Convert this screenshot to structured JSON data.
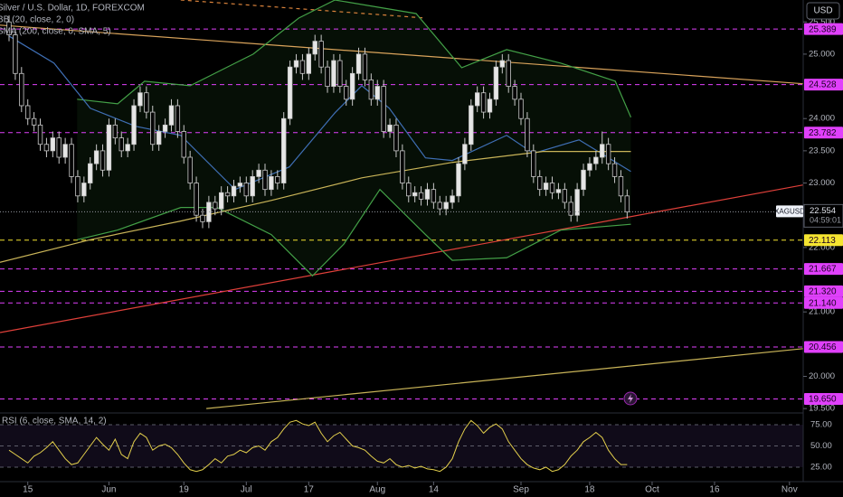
{
  "chart_data": {
    "type": "candlestick",
    "title": "Silver / U.S. Dollar, 1D, FOREXCOM",
    "indicators": [
      "BB (20, close, 2, 0)",
      "SMA (200, close, 0, SMA, 5)"
    ],
    "currency": "USD",
    "up_color": "#e6e6e6",
    "down_color": "#050505",
    "candles": [
      [
        25.5,
        25.6,
        25.2,
        25.3
      ],
      [
        25.3,
        25.4,
        24.6,
        24.7
      ],
      [
        24.7,
        24.8,
        24.1,
        24.2
      ],
      [
        24.2,
        24.3,
        23.9,
        24.0
      ],
      [
        24.0,
        24.1,
        23.8,
        23.9
      ],
      [
        23.9,
        24.0,
        23.5,
        23.6
      ],
      [
        23.6,
        23.7,
        23.4,
        23.5
      ],
      [
        23.5,
        23.8,
        23.4,
        23.7
      ],
      [
        23.7,
        23.8,
        23.3,
        23.4
      ],
      [
        23.4,
        23.7,
        23.3,
        23.6
      ],
      [
        23.6,
        23.7,
        23.0,
        23.1
      ],
      [
        23.1,
        23.2,
        22.7,
        22.8
      ],
      [
        22.8,
        23.1,
        22.7,
        23.0
      ],
      [
        23.0,
        23.4,
        22.9,
        23.3
      ],
      [
        23.3,
        23.6,
        23.2,
        23.5
      ],
      [
        23.5,
        23.6,
        23.1,
        23.2
      ],
      [
        23.2,
        24.0,
        23.1,
        23.9
      ],
      [
        23.9,
        24.0,
        23.6,
        23.7
      ],
      [
        23.7,
        23.8,
        23.4,
        23.5
      ],
      [
        23.5,
        23.7,
        23.4,
        23.6
      ],
      [
        23.6,
        24.3,
        23.5,
        24.2
      ],
      [
        24.2,
        24.5,
        24.1,
        24.4
      ],
      [
        24.4,
        24.5,
        24.0,
        24.1
      ],
      [
        24.1,
        24.2,
        23.5,
        23.6
      ],
      [
        23.6,
        23.9,
        23.5,
        23.8
      ],
      [
        23.8,
        24.0,
        23.7,
        23.9
      ],
      [
        23.9,
        24.3,
        23.8,
        24.2
      ],
      [
        24.2,
        24.3,
        23.7,
        23.8
      ],
      [
        23.8,
        23.9,
        23.3,
        23.4
      ],
      [
        23.4,
        23.5,
        22.9,
        23.0
      ],
      [
        23.0,
        23.1,
        22.4,
        22.5
      ],
      [
        22.5,
        22.6,
        22.3,
        22.4
      ],
      [
        22.4,
        22.8,
        22.3,
        22.7
      ],
      [
        22.7,
        22.8,
        22.5,
        22.6
      ],
      [
        22.6,
        22.95,
        22.5,
        22.85
      ],
      [
        22.85,
        22.95,
        22.7,
        22.8
      ],
      [
        22.8,
        23.05,
        22.7,
        22.95
      ],
      [
        22.95,
        23.1,
        22.85,
        23.0
      ],
      [
        23.0,
        23.1,
        22.7,
        22.8
      ],
      [
        22.8,
        23.2,
        22.7,
        23.1
      ],
      [
        23.1,
        23.3,
        23.0,
        23.2
      ],
      [
        23.2,
        23.3,
        22.8,
        22.9
      ],
      [
        22.9,
        23.2,
        22.8,
        23.1
      ],
      [
        23.1,
        23.2,
        22.9,
        23.0
      ],
      [
        23.0,
        24.1,
        22.9,
        24.0
      ],
      [
        24.0,
        24.9,
        23.9,
        24.8
      ],
      [
        24.8,
        25.0,
        24.7,
        24.9
      ],
      [
        24.9,
        25.0,
        24.6,
        24.7
      ],
      [
        24.7,
        25.1,
        24.6,
        25.0
      ],
      [
        25.0,
        25.3,
        24.9,
        25.2
      ],
      [
        25.2,
        25.3,
        24.7,
        24.8
      ],
      [
        24.8,
        24.9,
        24.4,
        24.5
      ],
      [
        24.5,
        25.0,
        24.4,
        24.9
      ],
      [
        24.9,
        25.0,
        24.4,
        24.5
      ],
      [
        24.5,
        24.6,
        24.2,
        24.3
      ],
      [
        24.3,
        24.8,
        24.2,
        24.7
      ],
      [
        24.7,
        25.1,
        24.6,
        25.0
      ],
      [
        25.0,
        25.1,
        24.5,
        24.6
      ],
      [
        24.6,
        24.7,
        24.2,
        24.3
      ],
      [
        24.3,
        24.6,
        24.2,
        24.5
      ],
      [
        24.5,
        24.6,
        23.7,
        23.8
      ],
      [
        23.8,
        24.0,
        23.7,
        23.9
      ],
      [
        23.9,
        24.0,
        23.4,
        23.5
      ],
      [
        23.5,
        23.6,
        22.9,
        23.0
      ],
      [
        23.0,
        23.1,
        22.7,
        22.8
      ],
      [
        22.8,
        22.95,
        22.7,
        22.85
      ],
      [
        22.85,
        22.95,
        22.65,
        22.75
      ],
      [
        22.75,
        23.0,
        22.65,
        22.9
      ],
      [
        22.9,
        23.0,
        22.6,
        22.7
      ],
      [
        22.7,
        22.8,
        22.5,
        22.6
      ],
      [
        22.6,
        22.8,
        22.5,
        22.7
      ],
      [
        22.7,
        22.9,
        22.6,
        22.8
      ],
      [
        22.8,
        23.4,
        22.7,
        23.3
      ],
      [
        23.3,
        23.7,
        23.2,
        23.6
      ],
      [
        23.6,
        24.3,
        23.5,
        24.2
      ],
      [
        24.2,
        24.5,
        24.1,
        24.4
      ],
      [
        24.4,
        24.5,
        24.0,
        24.1
      ],
      [
        24.1,
        24.4,
        24.0,
        24.3
      ],
      [
        24.3,
        24.9,
        24.2,
        24.8
      ],
      [
        24.8,
        25.0,
        24.7,
        24.9
      ],
      [
        24.9,
        25.0,
        24.4,
        24.5
      ],
      [
        24.5,
        24.6,
        24.2,
        24.3
      ],
      [
        24.3,
        24.4,
        23.9,
        24.0
      ],
      [
        24.0,
        24.1,
        23.4,
        23.5
      ],
      [
        23.5,
        23.6,
        23.0,
        23.1
      ],
      [
        23.1,
        23.2,
        22.8,
        22.9
      ],
      [
        22.9,
        23.1,
        22.8,
        23.0
      ],
      [
        23.0,
        23.1,
        22.75,
        22.85
      ],
      [
        22.85,
        23.0,
        22.75,
        22.9
      ],
      [
        22.9,
        23.0,
        22.6,
        22.7
      ],
      [
        22.7,
        22.8,
        22.4,
        22.5
      ],
      [
        22.5,
        23.0,
        22.4,
        22.9
      ],
      [
        22.9,
        23.3,
        22.8,
        23.2
      ],
      [
        23.2,
        23.4,
        23.1,
        23.3
      ],
      [
        23.3,
        23.5,
        23.2,
        23.4
      ],
      [
        23.4,
        23.8,
        23.3,
        23.6
      ],
      [
        23.6,
        23.7,
        23.2,
        23.3
      ],
      [
        23.3,
        23.4,
        23.0,
        23.1
      ],
      [
        23.1,
        23.2,
        22.7,
        22.8
      ],
      [
        22.8,
        22.9,
        22.45,
        22.554
      ]
    ],
    "xlim": [
      -1.45,
      127.2
    ],
    "xticks": [
      {
        "value": 3,
        "label": "15"
      },
      {
        "value": 16,
        "label": "Jun"
      },
      {
        "value": 28,
        "label": "19"
      },
      {
        "value": 38,
        "label": "Jul"
      },
      {
        "value": 48,
        "label": "17"
      },
      {
        "value": 59,
        "label": "Aug"
      },
      {
        "value": 68,
        "label": "14"
      },
      {
        "value": 82,
        "label": "Sep"
      },
      {
        "value": 93,
        "label": "18"
      },
      {
        "value": 103,
        "label": "Oct"
      },
      {
        "value": 113,
        "label": "16"
      },
      {
        "value": 125,
        "label": "Nov"
      }
    ],
    "ylim": [
      19.46,
      25.84
    ],
    "yticks": [
      {
        "value": 25.5,
        "label": "25.500"
      },
      {
        "value": 25,
        "label": "25.000"
      },
      {
        "value": 24,
        "label": "24.000"
      },
      {
        "value": 23.5,
        "label": "23.500"
      },
      {
        "value": 23,
        "label": "23.000"
      },
      {
        "value": 22,
        "label": "22.000"
      },
      {
        "value": 21,
        "label": "21.000"
      },
      {
        "value": 20,
        "label": "20.000"
      },
      {
        "value": 19.5,
        "label": "19.500"
      }
    ],
    "band_fill": "rgba(46,125,50,0.12)",
    "lines": [
      {
        "color": "#43a047",
        "x": [
          10.9,
          17.4,
          21.7,
          29,
          39.1,
          46.4,
          52.2,
          65.2,
          72.5,
          79.7,
          88.4,
          97.1,
          99.6
        ],
        "values": [
          24.3,
          24.23,
          24.58,
          24.51,
          25.0,
          25.56,
          25.84,
          25.63,
          24.79,
          25.07,
          24.86,
          24.58,
          24.02
        ]
      },
      {
        "color": "#43a047",
        "x": [
          10.9,
          17.4,
          27.5,
          33.3,
          42,
          48.6,
          53.6,
          59.4,
          66.7,
          71,
          79.7,
          88.4,
          99.6
        ],
        "values": [
          22.12,
          22.27,
          22.62,
          22.62,
          22.2,
          21.56,
          22.05,
          22.9,
          22.2,
          21.8,
          21.84,
          22.27,
          22.36
        ]
      },
      {
        "color": "#3f6fb5",
        "x": [
          0,
          7.2,
          13,
          20.3,
          27.5,
          36.2,
          44.9,
          52.2,
          56.5,
          60.9,
          66.7,
          71,
          79.7,
          84,
          91.3,
          99.6
        ],
        "values": [
          25.28,
          24.86,
          24.16,
          23.88,
          23.74,
          22.9,
          23.25,
          24.09,
          24.51,
          24.16,
          23.39,
          23.35,
          23.74,
          23.46,
          23.67,
          23.18
        ]
      },
      {
        "color": "#c9b458",
        "x": [
          -1.45,
          13,
          27.5,
          42,
          56.5,
          71,
          85.5,
          99.6
        ],
        "values": [
          21.77,
          22.12,
          22.41,
          22.73,
          23.08,
          23.32,
          23.49,
          23.49
        ]
      }
    ],
    "trendlines": [
      {
        "color": "#d9a35b",
        "dash": false,
        "x": [
          -1.45,
          127.2
        ],
        "values": [
          25.45,
          24.54
        ]
      },
      {
        "color": "#e0403a",
        "dash": false,
        "x": [
          -1.45,
          127.2
        ],
        "values": [
          20.68,
          22.97
        ]
      },
      {
        "color": "#c9b458",
        "dash": false,
        "x": [
          31.6,
          127.2
        ],
        "values": [
          19.5,
          20.43
        ]
      },
      {
        "color": "#d9823b",
        "dash": true,
        "x": [
          27.5,
          66.7
        ],
        "values": [
          25.84,
          25.56
        ]
      }
    ],
    "levels": [
      {
        "value": 25.389,
        "color": "#e040fb"
      },
      {
        "value": 24.528,
        "color": "#e040fb"
      },
      {
        "value": 23.782,
        "color": "#e040fb"
      },
      {
        "value": 22.113,
        "color": "#f5e431"
      },
      {
        "value": 21.667,
        "color": "#e040fb"
      },
      {
        "value": 21.32,
        "label": "21.320",
        "color": "#e040fb"
      },
      {
        "value": 21.14,
        "label": "21.140",
        "color": "#e040fb"
      },
      {
        "value": 20.456,
        "color": "#e040fb"
      },
      {
        "value": 19.65,
        "label": "19.650",
        "color": "#e040fb"
      }
    ],
    "last_price": {
      "symbol": "XAGUSD",
      "value": 22.554,
      "countdown": "04:59:01"
    },
    "rsi": {
      "title": "RSI (6, close, SMA, 14, 2)",
      "color": "#e3cf4c",
      "ylim": [
        9,
        87.8
      ],
      "yticks": [
        {
          "value": 75,
          "label": "75.00"
        },
        {
          "value": 50,
          "label": "50.00"
        },
        {
          "value": 25,
          "label": "25.00"
        }
      ],
      "values": [
        45,
        40,
        35,
        30,
        38,
        42,
        48,
        55,
        45,
        35,
        28,
        30,
        40,
        50,
        60,
        52,
        45,
        58,
        40,
        35,
        55,
        65,
        60,
        45,
        50,
        52,
        48,
        40,
        30,
        22,
        20,
        22,
        28,
        35,
        30,
        38,
        40,
        45,
        42,
        48,
        50,
        45,
        55,
        60,
        70,
        78,
        80,
        76,
        74,
        78,
        65,
        55,
        62,
        66,
        58,
        50,
        48,
        45,
        38,
        32,
        30,
        35,
        28,
        25,
        27,
        24,
        26,
        23,
        22,
        20,
        25,
        35,
        55,
        70,
        80,
        74,
        65,
        72,
        76,
        70,
        55,
        45,
        35,
        28,
        24,
        22,
        25,
        20,
        22,
        28,
        38,
        45,
        55,
        60,
        66,
        60,
        45,
        35,
        28,
        28
      ]
    }
  }
}
